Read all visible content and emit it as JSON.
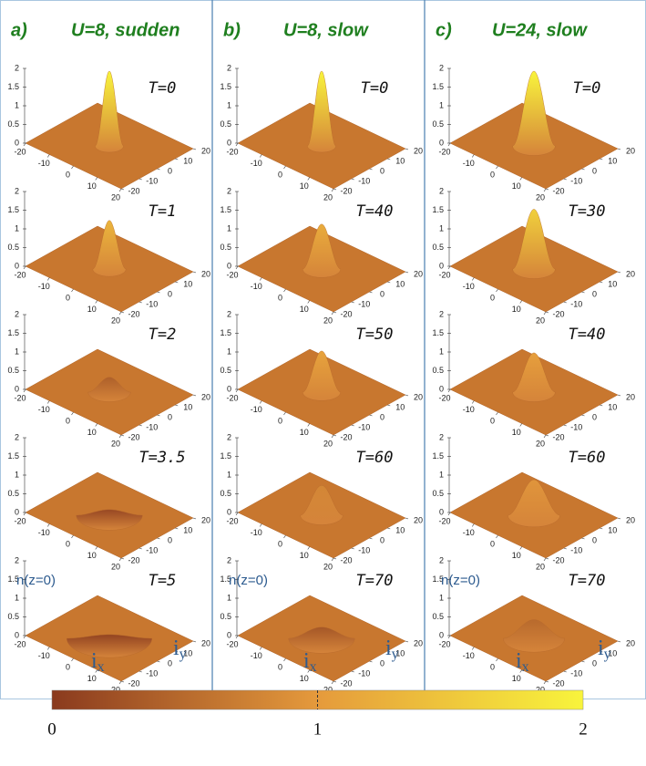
{
  "panels": [
    {
      "label": "a)",
      "title": "U=8, sudden",
      "plots": [
        {
          "time": "T=0",
          "peak": 2,
          "radius": 6
        },
        {
          "time": "T=1",
          "peak": 1.3,
          "radius": 7
        },
        {
          "time": "T=2",
          "peak": 0.4,
          "radius": 9
        },
        {
          "time": "T=3.5",
          "peak": 0.15,
          "radius": 14
        },
        {
          "time": "T=5",
          "peak": 0.1,
          "radius": 18
        }
      ]
    },
    {
      "label": "b)",
      "title": "U=8, slow",
      "plots": [
        {
          "time": "T=0",
          "peak": 2,
          "radius": 6
        },
        {
          "time": "T=40",
          "peak": 1.2,
          "radius": 8
        },
        {
          "time": "T=50",
          "peak": 1.1,
          "radius": 8
        },
        {
          "time": "T=60",
          "peak": 0.8,
          "radius": 9
        },
        {
          "time": "T=70",
          "peak": 0.3,
          "radius": 14
        }
      ]
    },
    {
      "label": "c)",
      "title": "U=24, slow",
      "plots": [
        {
          "time": "T=0",
          "peak": 2,
          "radius": 9
        },
        {
          "time": "T=30",
          "peak": 1.6,
          "radius": 9
        },
        {
          "time": "T=40",
          "peak": 1.05,
          "radius": 9
        },
        {
          "time": "T=60",
          "peak": 0.95,
          "radius": 11
        },
        {
          "time": "T=70",
          "peak": 0.5,
          "radius": 13
        }
      ]
    }
  ],
  "zlim": [
    0,
    2
  ],
  "zticks": [
    0,
    0.5,
    1,
    1.5,
    2
  ],
  "xylim": [
    -20,
    20
  ],
  "xyticks": [
    -20,
    -10,
    0,
    10,
    20
  ],
  "axis_labels": {
    "z": "n(z=0)",
    "x": {
      "base": "i",
      "sub": "x"
    },
    "y": {
      "base": "i",
      "sub": "y"
    }
  },
  "colorbar": {
    "lim": [
      0,
      2
    ],
    "ticks": [
      0,
      1,
      2
    ],
    "colors": [
      "#8a3a1e",
      "#e59a3c",
      "#f8f43c"
    ]
  }
}
